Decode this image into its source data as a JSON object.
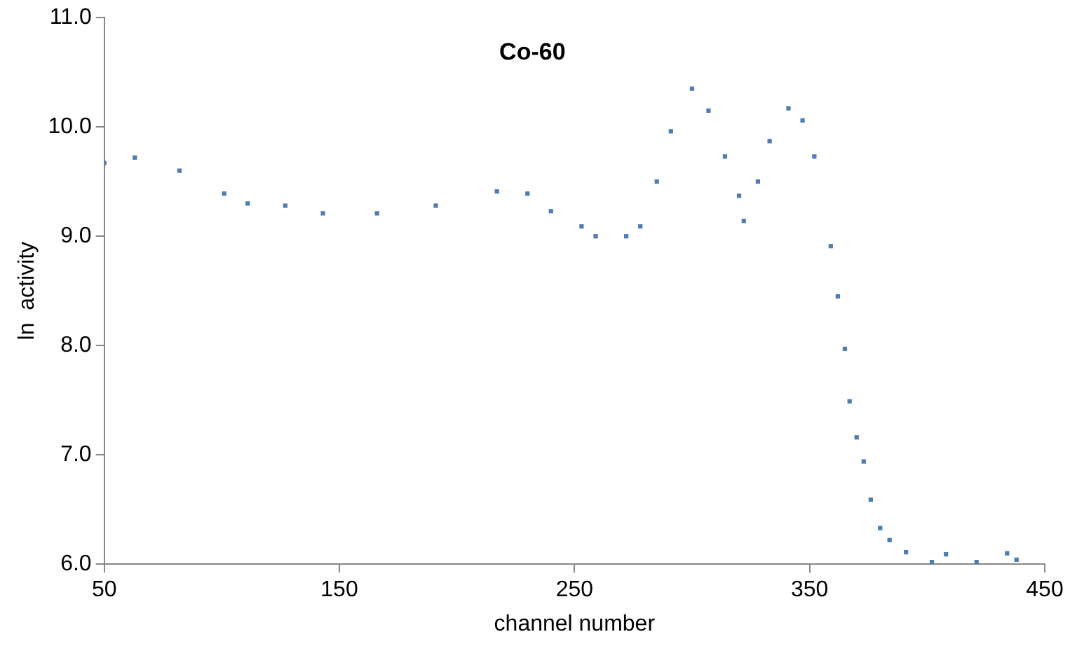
{
  "chart_data": {
    "type": "scatter",
    "title": "Co-60",
    "xlabel": "channel number",
    "ylabel": "ln  activity",
    "x": [
      50,
      63,
      82,
      101,
      111,
      127,
      143,
      166,
      191,
      217,
      230,
      240,
      253,
      259,
      272,
      278,
      285,
      291,
      300,
      307,
      314,
      320,
      322,
      328,
      333,
      341,
      347,
      352,
      359,
      362,
      365,
      367,
      370,
      373,
      376,
      380,
      384,
      391,
      402,
      408,
      421,
      434,
      438
    ],
    "series": [
      {
        "color": "#4f7cb1",
        "values": [
          9.67,
          9.72,
          9.6,
          9.39,
          9.3,
          9.28,
          9.21,
          9.21,
          9.28,
          9.41,
          9.39,
          9.23,
          9.09,
          9.0,
          9.0,
          9.09,
          9.5,
          9.96,
          10.35,
          10.15,
          9.73,
          9.37,
          9.14,
          9.5,
          9.87,
          10.17,
          10.06,
          9.73,
          8.91,
          8.45,
          7.97,
          7.49,
          7.16,
          6.94,
          6.59,
          6.33,
          6.22,
          6.11,
          6.02,
          6.09,
          6.02,
          6.1,
          6.04
        ]
      }
    ],
    "xlim": [
      50,
      450
    ],
    "xticks": [
      50,
      150,
      250,
      350,
      450
    ],
    "ylim": [
      6,
      11
    ],
    "yticks": [
      {
        "value": 6,
        "label": "6.0"
      },
      {
        "value": 7,
        "label": "7.0"
      },
      {
        "value": 8,
        "label": "8.0"
      },
      {
        "value": 9,
        "label": "9.0"
      },
      {
        "value": 10,
        "label": "10.0"
      },
      {
        "value": 11,
        "label": "11.0"
      }
    ],
    "grid": false,
    "legend": false,
    "marker": "square"
  }
}
